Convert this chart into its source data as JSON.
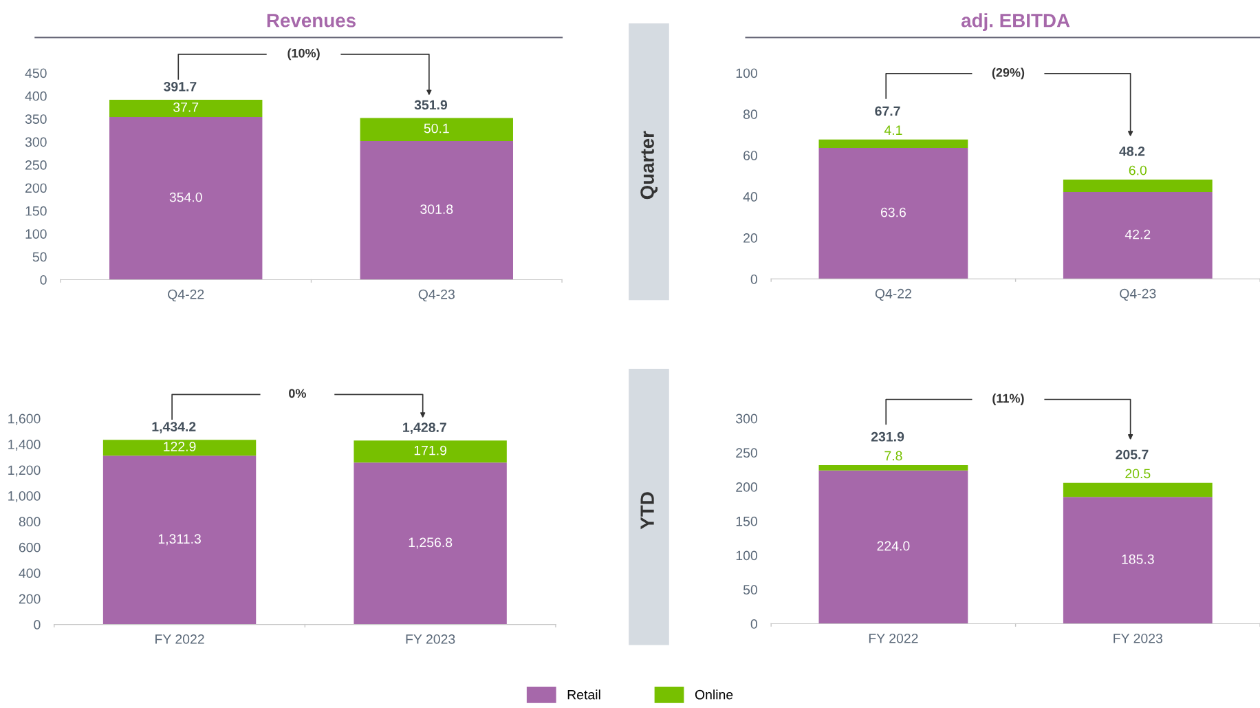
{
  "chart_data": [
    {
      "type": "bar",
      "title": "Revenues",
      "categories": [
        "Q4-22",
        "Q4-23"
      ],
      "stacked": true,
      "totals": [
        "391.7",
        "351.9"
      ],
      "legend": "bottom",
      "ylim": [
        0,
        450
      ],
      "yticks": [
        0,
        50,
        100,
        150,
        200,
        250,
        300,
        350,
        400,
        450
      ],
      "annotations": [
        "(10%)"
      ],
      "series": [
        {
          "name": "Retail",
          "color": "#a668aa",
          "values": [
            354.0,
            301.8
          ],
          "value_labels": [
            "354.0",
            "301.8"
          ]
        },
        {
          "name": "Online",
          "color": "#77c000",
          "values": [
            37.7,
            50.1
          ],
          "value_labels": [
            "37.7",
            "50.1"
          ]
        }
      ]
    },
    {
      "type": "bar",
      "title": "adj. EBITDA",
      "categories": [
        "Q4-22",
        "Q4-23"
      ],
      "stacked": true,
      "totals": [
        "67.7",
        "48.2"
      ],
      "ylim": [
        0,
        100
      ],
      "yticks": [
        0,
        20,
        40,
        60,
        80,
        100
      ],
      "annotations": [
        "(29%)",
        "Quarter"
      ],
      "series": [
        {
          "color": "#a668aa",
          "values": [
            63.6,
            42.2
          ],
          "value_labels": [
            "63.6",
            "42.2"
          ]
        },
        {
          "color": "#77c000",
          "values": [
            4.1,
            6.0
          ],
          "value_labels": [
            "4.1",
            "6.0"
          ]
        }
      ]
    },
    {
      "type": "bar",
      "categories": [
        "FY 2022",
        "FY 2023"
      ],
      "stacked": true,
      "totals": [
        "1,434.2",
        "1,428.7"
      ],
      "ylim": [
        0,
        1600
      ],
      "yticks": [
        0,
        {
          "value": 200,
          "label": "200"
        },
        {
          "value": 400,
          "label": "400"
        },
        {
          "value": 600,
          "label": "600"
        },
        {
          "value": 800,
          "label": "800"
        },
        {
          "value": 1000,
          "label": "1,000"
        },
        {
          "value": 1200,
          "label": "1,200"
        },
        {
          "value": 1400,
          "label": "1,400"
        },
        {
          "value": 1600,
          "label": "1,600"
        }
      ],
      "annotations": [
        "0%"
      ],
      "series": [
        {
          "color": "#a668aa",
          "values": [
            1311.3,
            1256.8
          ],
          "value_labels": [
            "1,311.3",
            "1,256.8"
          ]
        },
        {
          "color": "#77c000",
          "values": [
            122.9,
            171.9
          ],
          "value_labels": [
            "122.9",
            "171.9"
          ]
        }
      ]
    },
    {
      "type": "bar",
      "categories": [
        "FY 2022",
        "FY 2023"
      ],
      "stacked": true,
      "totals": [
        "231.9",
        "205.7"
      ],
      "ylim": [
        0,
        300
      ],
      "yticks": [
        0,
        50,
        100,
        150,
        200,
        250,
        300
      ],
      "annotations": [
        "(11%)",
        "YTD"
      ],
      "series": [
        {
          "color": "#a668aa",
          "values": [
            224.0,
            185.3
          ],
          "value_labels": [
            "224.0",
            "185.3"
          ]
        },
        {
          "color": "#77c000",
          "values": [
            7.8,
            20.5
          ],
          "value_labels": [
            "7.8",
            "20.5"
          ]
        }
      ]
    }
  ]
}
